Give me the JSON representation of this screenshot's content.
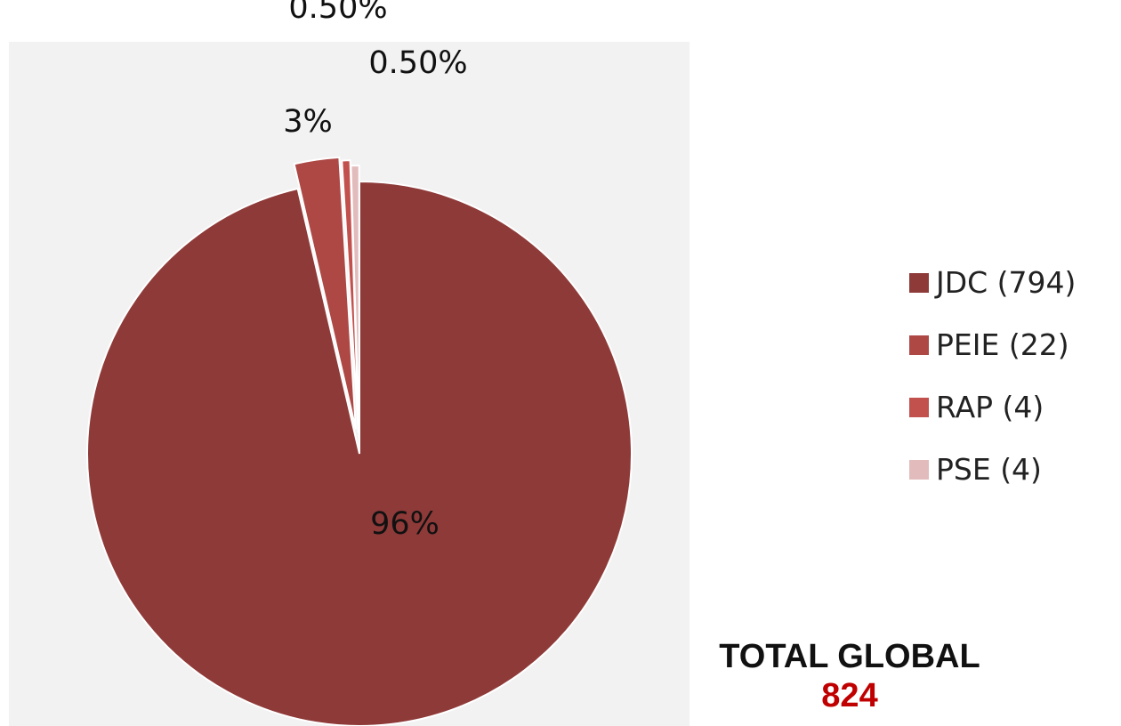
{
  "chart_data": {
    "type": "pie",
    "slices": [
      {
        "name": "JDC (794)",
        "value": 794,
        "label": "96%",
        "color": "#8e3a38"
      },
      {
        "name": "PEIE (22)",
        "value": 22,
        "label": "3%",
        "color": "#ae4845"
      },
      {
        "name": "RAP (4)",
        "value": 4,
        "label": "0.50%",
        "color": "#c2504d"
      },
      {
        "name": "PSE (4)",
        "value": 4,
        "label": "0.50%",
        "color": "#e2bcbc"
      }
    ],
    "legend_position": "right",
    "plot_background": "#f2f2f2"
  },
  "total": {
    "label": "TOTAL GLOBAL",
    "value": "824",
    "value_color": "#c00000"
  }
}
